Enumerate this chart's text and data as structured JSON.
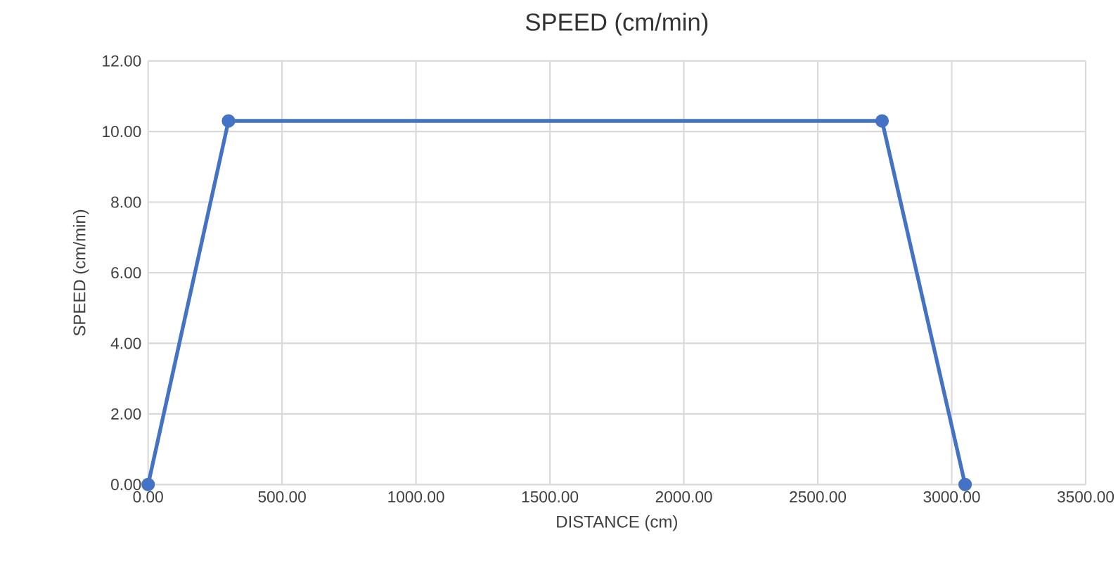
{
  "chart_data": {
    "type": "line",
    "title": "SPEED (cm/min)",
    "xlabel": "DISTANCE (cm)",
    "ylabel": "SPEED (cm/min)",
    "x": [
      0,
      300,
      2740,
      3050
    ],
    "series": [
      {
        "color": "#4472c4",
        "values": [
          0,
          10.3,
          10.3,
          0
        ]
      }
    ],
    "xlim": [
      0,
      3500
    ],
    "ylim": [
      0,
      12
    ],
    "xticks": [
      {
        "value": 0,
        "label": "0.00"
      },
      {
        "value": 500,
        "label": "500.00"
      },
      {
        "value": 1000,
        "label": "1000.00"
      },
      {
        "value": 1500,
        "label": "1500.00"
      },
      {
        "value": 2000,
        "label": "2000.00"
      },
      {
        "value": 2500,
        "label": "2500.00"
      },
      {
        "value": 3000,
        "label": "3000.00"
      },
      {
        "value": 3500,
        "label": "3500.00"
      }
    ],
    "yticks": [
      {
        "value": 0,
        "label": "0.00"
      },
      {
        "value": 2,
        "label": "2.00"
      },
      {
        "value": 4,
        "label": "4.00"
      },
      {
        "value": 6,
        "label": "6.00"
      },
      {
        "value": 8,
        "label": "8.00"
      },
      {
        "value": 10,
        "label": "10.00"
      },
      {
        "value": 12,
        "label": "12.00"
      }
    ],
    "grid": true,
    "marker": "circle",
    "line_style": "solid",
    "legend": false
  }
}
